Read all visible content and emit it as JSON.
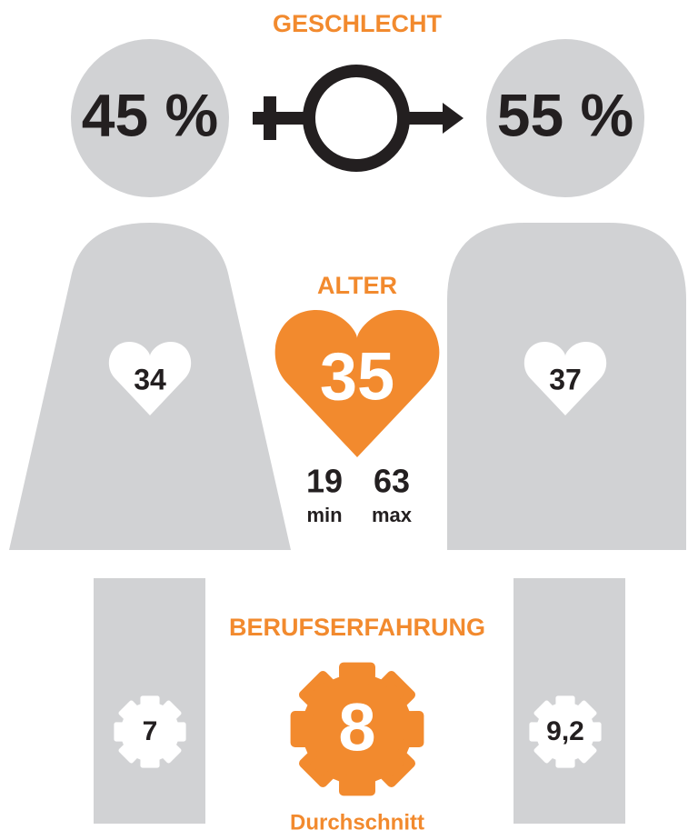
{
  "gender": {
    "title": "GESCHLECHT",
    "female": "45 %",
    "male": "55 %"
  },
  "age": {
    "title": "ALTER",
    "female": "34",
    "average": "35",
    "male": "37",
    "min_value": "19",
    "min_label": "min",
    "max_value": "63",
    "max_label": "max"
  },
  "experience": {
    "title": "BERUFSERFAHRUNG",
    "female": "7",
    "average": "8",
    "male": "9,2",
    "average_label": "Durchschnitt"
  }
}
